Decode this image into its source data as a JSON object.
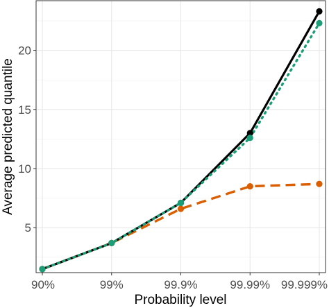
{
  "chart_data": {
    "type": "line",
    "title": "",
    "xlabel": "Probability level",
    "ylabel": "Average predicted quantile",
    "categories": [
      "90%",
      "99%",
      "99.9%",
      "99.99%",
      "99.999%"
    ],
    "ylim": [
      1.2,
      24.2
    ],
    "yticks": [
      5,
      10,
      15,
      20
    ],
    "grid": true,
    "legend": "none",
    "series": [
      {
        "color": "#000000",
        "line_style": "solid",
        "values": [
          1.5,
          3.7,
          7.1,
          13.0,
          23.3
        ]
      },
      {
        "color": "#1b9e77",
        "line_style": "dotted",
        "values": [
          1.5,
          3.7,
          7.1,
          12.6,
          22.3
        ]
      },
      {
        "color": "#d95f02",
        "line_style": "dashed",
        "values": [
          1.5,
          3.7,
          6.6,
          8.5,
          8.7
        ]
      }
    ]
  }
}
